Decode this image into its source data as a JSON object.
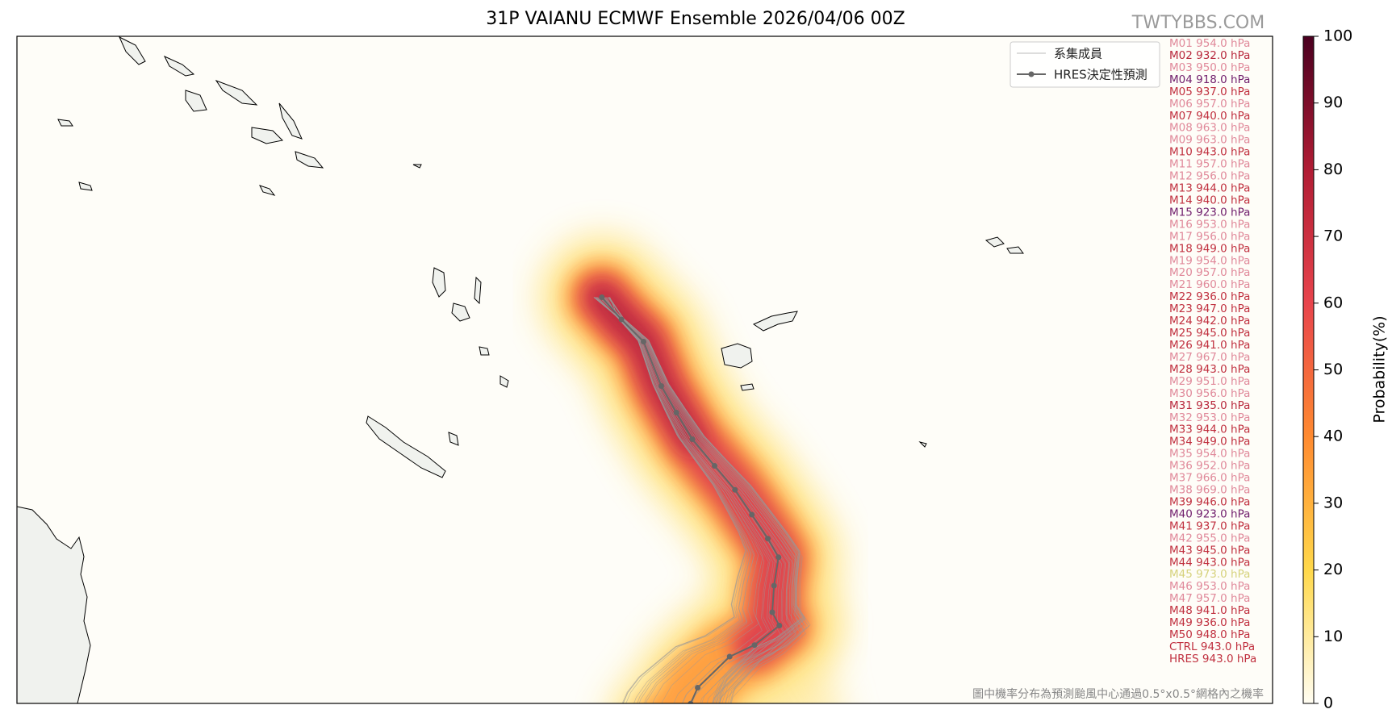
{
  "title": "31P VAIANU ECMWF Ensemble 2026/04/06 00Z",
  "watermark": "TWTYBBS.COM",
  "legend": {
    "members": "系集成員",
    "hres": "HRES決定性預測"
  },
  "member_pressures": [
    {
      "label": "M01 954.0 hPa",
      "color": "#e0899a"
    },
    {
      "label": "M02 932.0 hPa",
      "color": "#b8283c"
    },
    {
      "label": "M03 950.0 hPa",
      "color": "#e0899a"
    },
    {
      "label": "M04 918.0 hPa",
      "color": "#72206e"
    },
    {
      "label": "M05 937.0 hPa",
      "color": "#c0303f"
    },
    {
      "label": "M06 957.0 hPa",
      "color": "#e0899a"
    },
    {
      "label": "M07 940.0 hPa",
      "color": "#c0303f"
    },
    {
      "label": "M08 963.0 hPa",
      "color": "#e0899a"
    },
    {
      "label": "M09 963.0 hPa",
      "color": "#e0899a"
    },
    {
      "label": "M10 943.0 hPa",
      "color": "#c0303f"
    },
    {
      "label": "M11 957.0 hPa",
      "color": "#e0899a"
    },
    {
      "label": "M12 956.0 hPa",
      "color": "#e0899a"
    },
    {
      "label": "M13 944.0 hPa",
      "color": "#c0303f"
    },
    {
      "label": "M14 940.0 hPa",
      "color": "#c0303f"
    },
    {
      "label": "M15 923.0 hPa",
      "color": "#72206e"
    },
    {
      "label": "M16 953.0 hPa",
      "color": "#e0899a"
    },
    {
      "label": "M17 956.0 hPa",
      "color": "#e0899a"
    },
    {
      "label": "M18 949.0 hPa",
      "color": "#c0303f"
    },
    {
      "label": "M19 954.0 hPa",
      "color": "#e0899a"
    },
    {
      "label": "M20 957.0 hPa",
      "color": "#e0899a"
    },
    {
      "label": "M21 960.0 hPa",
      "color": "#e0899a"
    },
    {
      "label": "M22 936.0 hPa",
      "color": "#c0303f"
    },
    {
      "label": "M23 947.0 hPa",
      "color": "#c0303f"
    },
    {
      "label": "M24 942.0 hPa",
      "color": "#c0303f"
    },
    {
      "label": "M25 945.0 hPa",
      "color": "#c0303f"
    },
    {
      "label": "M26 941.0 hPa",
      "color": "#c0303f"
    },
    {
      "label": "M27 967.0 hPa",
      "color": "#e0899a"
    },
    {
      "label": "M28 943.0 hPa",
      "color": "#c0303f"
    },
    {
      "label": "M29 951.0 hPa",
      "color": "#e0899a"
    },
    {
      "label": "M30 956.0 hPa",
      "color": "#e0899a"
    },
    {
      "label": "M31 935.0 hPa",
      "color": "#b8283c"
    },
    {
      "label": "M32 953.0 hPa",
      "color": "#e0899a"
    },
    {
      "label": "M33 944.0 hPa",
      "color": "#c0303f"
    },
    {
      "label": "M34 949.0 hPa",
      "color": "#c0303f"
    },
    {
      "label": "M35 954.0 hPa",
      "color": "#e0899a"
    },
    {
      "label": "M36 952.0 hPa",
      "color": "#e0899a"
    },
    {
      "label": "M37 966.0 hPa",
      "color": "#e0899a"
    },
    {
      "label": "M38 969.0 hPa",
      "color": "#e0899a"
    },
    {
      "label": "M39 946.0 hPa",
      "color": "#c0303f"
    },
    {
      "label": "M40 923.0 hPa",
      "color": "#72206e"
    },
    {
      "label": "M41 937.0 hPa",
      "color": "#c0303f"
    },
    {
      "label": "M42 955.0 hPa",
      "color": "#e0899a"
    },
    {
      "label": "M43 945.0 hPa",
      "color": "#c0303f"
    },
    {
      "label": "M44 943.0 hPa",
      "color": "#c0303f"
    },
    {
      "label": "M45 973.0 hPa",
      "color": "#d6d27c"
    },
    {
      "label": "M46 953.0 hPa",
      "color": "#e0899a"
    },
    {
      "label": "M47 957.0 hPa",
      "color": "#e0899a"
    },
    {
      "label": "M48 941.0 hPa",
      "color": "#c0303f"
    },
    {
      "label": "M49 936.0 hPa",
      "color": "#c0303f"
    },
    {
      "label": "M50 948.0 hPa",
      "color": "#c0303f"
    },
    {
      "label": "CTRL 943.0 hPa",
      "color": "#c0303f"
    },
    {
      "label": "HRES 943.0 hPa",
      "color": "#c0303f"
    }
  ],
  "colorbar": {
    "label": "Probability(%)",
    "lim": [
      0,
      100
    ],
    "ticks": [
      0,
      10,
      20,
      30,
      40,
      50,
      60,
      70,
      80,
      90,
      100
    ],
    "colors": [
      "#fffdf2",
      "#ffd84a",
      "#ff8a30",
      "#e8444c",
      "#b01c34",
      "#4a0020"
    ]
  },
  "footnote": "圖中機率分布為預測颱風中心通過0.5°x0.5°網格內之機率"
}
